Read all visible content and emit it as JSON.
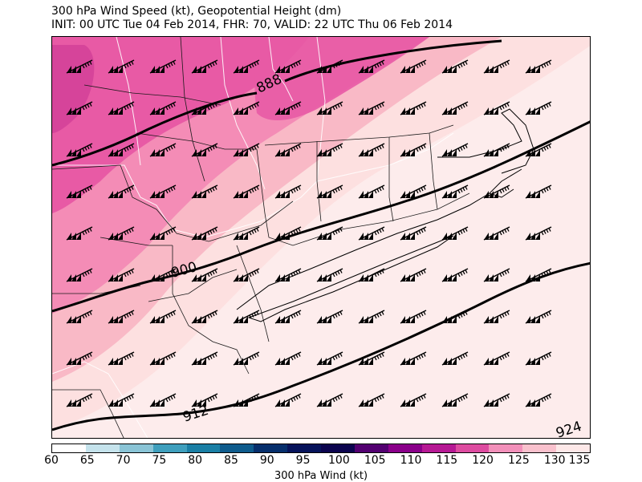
{
  "title": {
    "line1": "300 hPa Wind Speed (kt), Geopotential Height (dm)",
    "line2": "INIT: 00 UTC Tue 04 Feb 2014, FHR: 70, VALID: 22 UTC Thu 06 Feb 2014"
  },
  "map": {
    "contour_labels": [
      "888",
      "900",
      "912",
      "924"
    ],
    "wind_barb_icon": "wind-barb-icon"
  },
  "colorbar": {
    "label": "300 hPa Wind (kt)",
    "ticks": [
      "60",
      "65",
      "70",
      "75",
      "80",
      "85",
      "90",
      "95",
      "100",
      "105",
      "110",
      "115",
      "120",
      "125",
      "130",
      "135"
    ],
    "colors": [
      "#ffffff",
      "#c5e3ec",
      "#8ac4d6",
      "#3f9fbd",
      "#1a7fa5",
      "#0e5b8c",
      "#062f6c",
      "#06135a",
      "#0b044e",
      "#520070",
      "#8a008a",
      "#b61994",
      "#dd4ca0",
      "#f290ba",
      "#f9c1cd",
      "#fde8e8"
    ]
  },
  "colors": {
    "speed_115": "#e85aa5",
    "speed_120": "#f48cb6",
    "speed_125": "#f9b9c6",
    "speed_130": "#fde0e0",
    "speed_135": "#fdecec"
  }
}
